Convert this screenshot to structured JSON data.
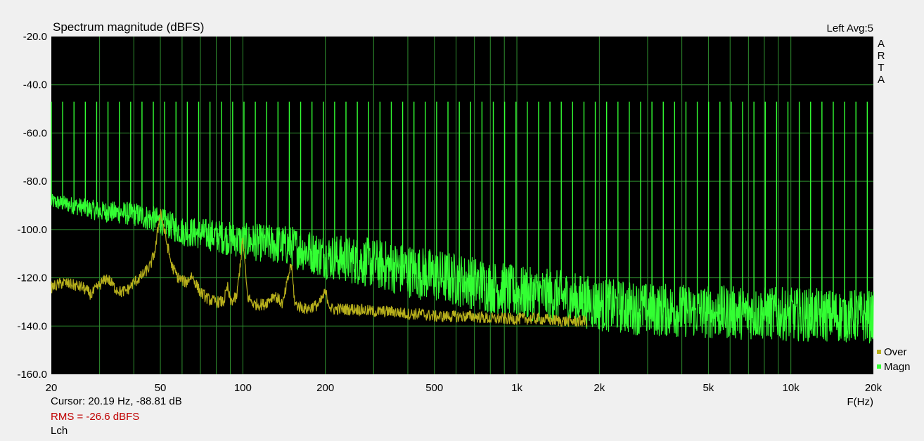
{
  "colors": {
    "background": "#f0f0f0",
    "plot_background": "#000000",
    "grid": "#2f8f2f",
    "magn": "#33ff33",
    "over": "#b8b01c",
    "rms_text": "#c00000"
  },
  "header": {
    "title": "Spectrum magnitude (dBFS)",
    "channel_avg": "Left  Avg:5",
    "brand_letters": [
      "A",
      "R",
      "T",
      "A"
    ]
  },
  "footer": {
    "cursor": "Cursor: 20.19 Hz, -88.81 dB",
    "rms": "RMS =  -26.6 dBFS",
    "channel": "Lch"
  },
  "chart_data": {
    "type": "line",
    "title": "Spectrum magnitude (dBFS)",
    "xlabel": "F(Hz)",
    "ylabel": "",
    "x_scale": "log",
    "xlim": [
      20,
      20000
    ],
    "ylim": [
      -160,
      -20
    ],
    "grid": true,
    "legend_position": "bottom-right",
    "y_ticks": [
      {
        "value": -20,
        "label": "-20.0"
      },
      {
        "value": -40,
        "label": "-40.0"
      },
      {
        "value": -60,
        "label": "-60.0"
      },
      {
        "value": -80,
        "label": "-80.0"
      },
      {
        "value": -100,
        "label": "-100.0"
      },
      {
        "value": -120,
        "label": "-120.0"
      },
      {
        "value": -140,
        "label": "-140.0"
      },
      {
        "value": -160,
        "label": "-160.0"
      }
    ],
    "x_ticks": [
      {
        "value": 20,
        "label": "20"
      },
      {
        "value": 50,
        "label": "50"
      },
      {
        "value": 100,
        "label": "100"
      },
      {
        "value": 200,
        "label": "200"
      },
      {
        "value": 500,
        "label": "500"
      },
      {
        "value": 1000,
        "label": "1k"
      },
      {
        "value": 2000,
        "label": "2k"
      },
      {
        "value": 5000,
        "label": "5k"
      },
      {
        "value": 10000,
        "label": "10k"
      },
      {
        "value": 20000,
        "label": "20k"
      }
    ],
    "series": [
      {
        "name": "Over",
        "color": "#b8b01c",
        "points": [
          [
            20,
            -124
          ],
          [
            22,
            -122
          ],
          [
            24,
            -123
          ],
          [
            26,
            -124
          ],
          [
            28,
            -127
          ],
          [
            30,
            -123
          ],
          [
            32,
            -120
          ],
          [
            34,
            -124
          ],
          [
            36,
            -126
          ],
          [
            38,
            -125
          ],
          [
            40,
            -122
          ],
          [
            43,
            -119
          ],
          [
            46,
            -115
          ],
          [
            48,
            -108
          ],
          [
            50,
            -92
          ],
          [
            52,
            -102
          ],
          [
            55,
            -115
          ],
          [
            58,
            -120
          ],
          [
            62,
            -122
          ],
          [
            65,
            -119
          ],
          [
            70,
            -126
          ],
          [
            75,
            -129
          ],
          [
            80,
            -130
          ],
          [
            85,
            -130
          ],
          [
            88,
            -124
          ],
          [
            90,
            -130
          ],
          [
            95,
            -128
          ],
          [
            100,
            -104
          ],
          [
            104,
            -128
          ],
          [
            110,
            -131
          ],
          [
            120,
            -131
          ],
          [
            130,
            -127
          ],
          [
            140,
            -131
          ],
          [
            150,
            -114
          ],
          [
            155,
            -131
          ],
          [
            170,
            -133
          ],
          [
            190,
            -131
          ],
          [
            200,
            -126
          ],
          [
            210,
            -133
          ],
          [
            230,
            -133
          ],
          [
            260,
            -133
          ],
          [
            300,
            -134
          ],
          [
            350,
            -134
          ],
          [
            400,
            -135
          ],
          [
            450,
            -135
          ],
          [
            500,
            -136
          ],
          [
            600,
            -136
          ],
          [
            700,
            -136
          ],
          [
            800,
            -137
          ],
          [
            900,
            -137
          ],
          [
            1000,
            -137
          ],
          [
            1200,
            -137
          ],
          [
            1500,
            -138
          ],
          [
            1800,
            -138
          ]
        ]
      },
      {
        "name": "Magn",
        "color": "#33ff33",
        "noise_floor": [
          [
            20,
            -88
          ],
          [
            25,
            -90
          ],
          [
            30,
            -92
          ],
          [
            40,
            -93
          ],
          [
            50,
            -96
          ],
          [
            60,
            -100
          ],
          [
            80,
            -102
          ],
          [
            100,
            -104
          ],
          [
            150,
            -106
          ],
          [
            200,
            -110
          ],
          [
            300,
            -113
          ],
          [
            500,
            -118
          ],
          [
            700,
            -121
          ],
          [
            1000,
            -125
          ],
          [
            1500,
            -127
          ],
          [
            2000,
            -130
          ],
          [
            3000,
            -132
          ],
          [
            5000,
            -133
          ],
          [
            10000,
            -134
          ],
          [
            20000,
            -135
          ]
        ],
        "multitone": {
          "level_db": -47,
          "first_hz": 20,
          "last_hz": 19000,
          "tone_count": 73
        }
      }
    ],
    "legend": [
      {
        "name": "Over",
        "color": "#b8b01c"
      },
      {
        "name": "Magn",
        "color": "#33ff33"
      }
    ]
  }
}
